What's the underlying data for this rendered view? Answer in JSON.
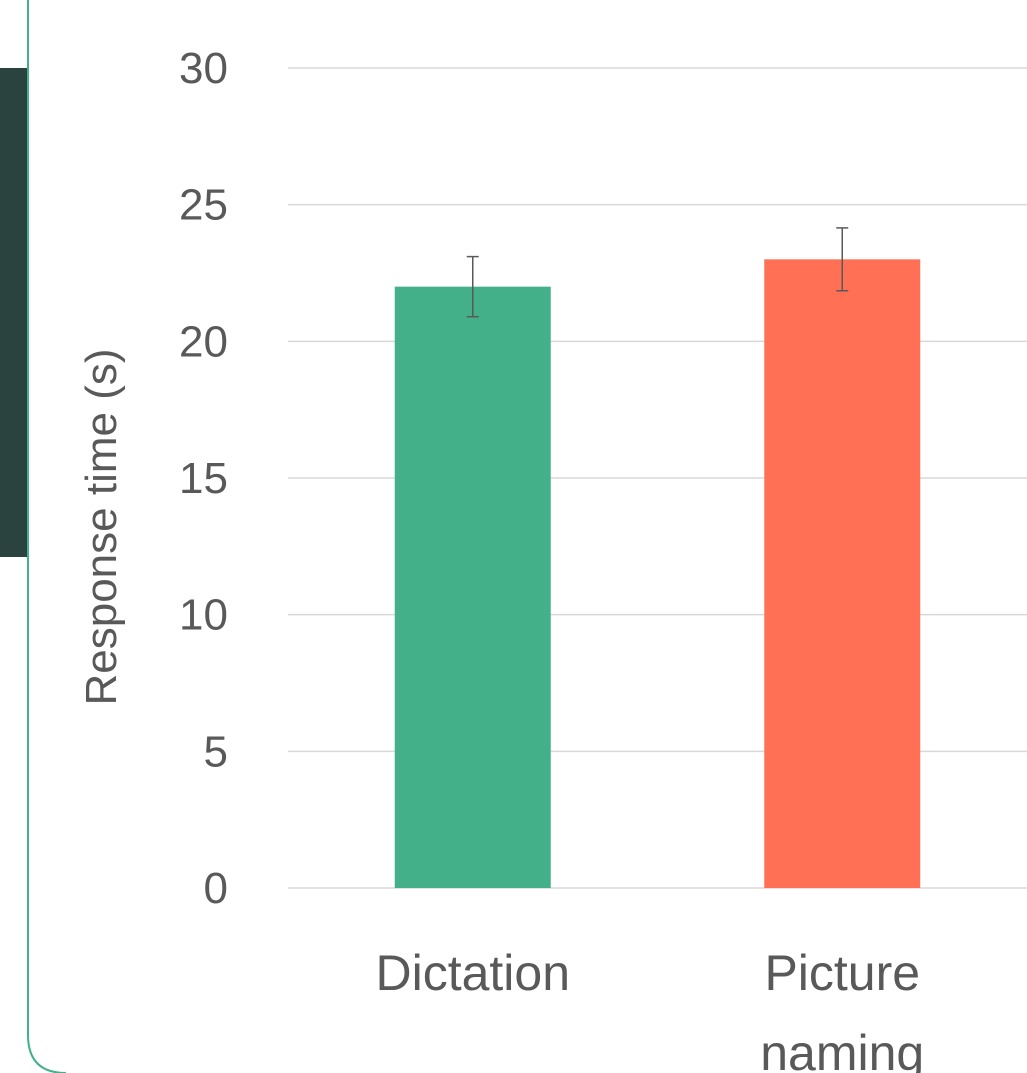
{
  "colors": {
    "panel_dark": "#2a433f",
    "panel_border": "#43b08a",
    "grid": "#d9d9d9",
    "text": "#595959",
    "error_bar": "#595959"
  },
  "chart_data": {
    "type": "bar",
    "categories": [
      "Dictation",
      "Picture naming"
    ],
    "category_lines": [
      [
        "Dictation"
      ],
      [
        "Picture",
        "naming"
      ]
    ],
    "values": [
      22,
      23
    ],
    "error": [
      1.1,
      1.15
    ],
    "bar_colors": [
      "#43b08a",
      "#ff7055"
    ],
    "title": "",
    "xlabel": "",
    "ylabel": "Response time (s)",
    "ylim": [
      0,
      30
    ],
    "yticks": [
      0,
      5,
      10,
      15,
      20,
      25,
      30
    ],
    "grid": true,
    "legend": "none"
  }
}
